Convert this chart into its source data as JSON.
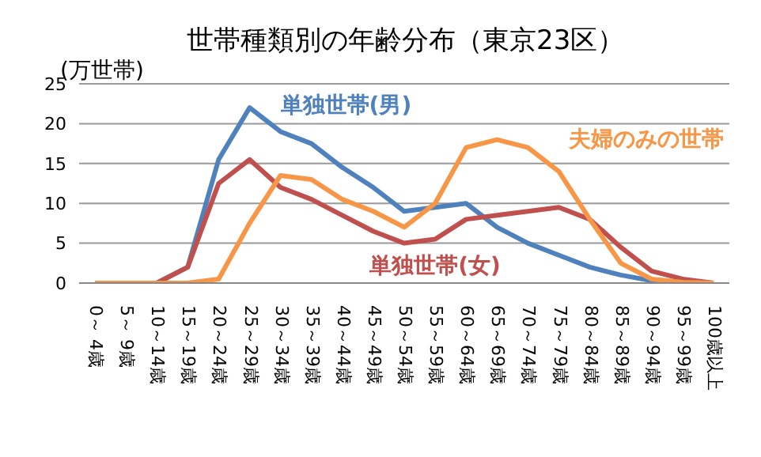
{
  "chart_data": {
    "type": "line",
    "title": "世帯種類別の年齢分布（東京23区）",
    "ylabel": "(万世帯)",
    "categories": [
      "0～ 4歳",
      "5～ 9歳",
      "10～14歳",
      "15～19歳",
      "20～24歳",
      "25～29歳",
      "30～34歳",
      "35～39歳",
      "40～44歳",
      "45～49歳",
      "50～54歳",
      "55～59歳",
      "60～64歳",
      "65～69歳",
      "70～74歳",
      "75～79歳",
      "80～84歳",
      "85～89歳",
      "90～94歳",
      "95～99歳",
      "100歳以上"
    ],
    "series": [
      {
        "name": "単独世帯(男)",
        "color": "#4f81bd",
        "values": [
          null,
          null,
          0,
          2,
          15.5,
          22,
          19,
          17.5,
          14.5,
          12,
          9,
          9.5,
          10,
          7,
          5,
          3.5,
          2,
          1,
          0.3,
          0.1,
          0
        ]
      },
      {
        "name": "単独世帯(女)",
        "color": "#c0504d",
        "values": [
          0,
          0,
          0,
          2,
          12.5,
          15.5,
          12,
          10.5,
          8.5,
          6.5,
          5,
          5.5,
          8,
          8.5,
          9,
          9.5,
          8,
          4.5,
          1.5,
          0.5,
          0
        ]
      },
      {
        "name": "夫婦のみの世帯",
        "color": "#f79646",
        "values": [
          0,
          0,
          0,
          0,
          0.5,
          7.5,
          13.5,
          13,
          10.5,
          9,
          7,
          10,
          17,
          18,
          17,
          14,
          8,
          2.5,
          0.5,
          0.1,
          0
        ]
      }
    ],
    "ylim": [
      0,
      25
    ],
    "yticks": [
      0,
      5,
      10,
      15,
      20,
      25
    ],
    "grid": "y",
    "legend": false,
    "marker": "none",
    "line_style": "solid"
  }
}
